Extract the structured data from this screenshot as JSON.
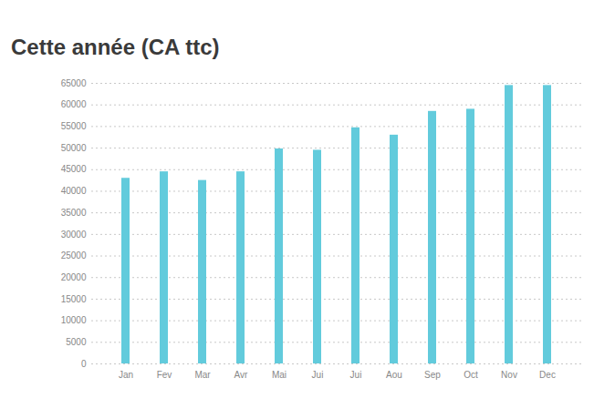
{
  "chart_data": {
    "type": "bar",
    "title": "Cette année (CA ttc)",
    "categories": [
      "Jan",
      "Fev",
      "Mar",
      "Avr",
      "Mai",
      "Jui",
      "Jui",
      "Aou",
      "Sep",
      "Oct",
      "Nov",
      "Dec"
    ],
    "values": [
      43000,
      44500,
      42500,
      44500,
      49800,
      49500,
      54700,
      53000,
      58500,
      59000,
      64500,
      64500
    ],
    "color": "#62cbdc",
    "ylim": [
      0,
      65000
    ],
    "yticks": [
      0,
      5000,
      10000,
      15000,
      20000,
      25000,
      30000,
      35000,
      40000,
      45000,
      50000,
      55000,
      60000,
      65000
    ],
    "grid": true
  }
}
